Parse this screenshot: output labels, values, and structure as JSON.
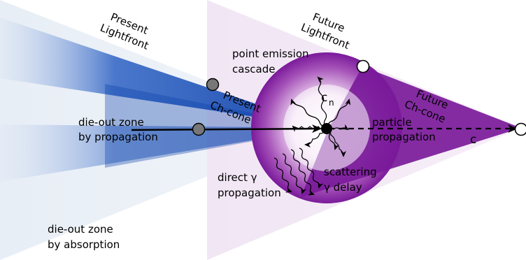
{
  "labels": {
    "present_lightfront": [
      "Present",
      "Lightfront"
    ],
    "future_lightfront": [
      "Future",
      "Lightfront"
    ],
    "point_emission": [
      "point emission",
      "cascade"
    ],
    "present_chcone": [
      "Present",
      "Ch-cone"
    ],
    "future_chcone": [
      "Future",
      "Ch-cone"
    ],
    "cn_base": "c",
    "cn_sub": "n",
    "dieout_propagation": [
      "die-out zone",
      "by propagation"
    ],
    "particle_propagation": [
      "particle",
      "propagation"
    ],
    "c_label": "c",
    "direct_gamma": [
      "direct γ",
      "propagation"
    ],
    "scattering": [
      "scattering",
      "γ delay"
    ],
    "dieout_absorption": [
      "die-out zone",
      "by absorption"
    ]
  },
  "colors": {
    "present_blue": "#0a3fa8",
    "present_light": "#dde8f5",
    "future_purple": "#7a1a9a",
    "future_light": "#efe3f2",
    "marker_gray": "#777777"
  }
}
